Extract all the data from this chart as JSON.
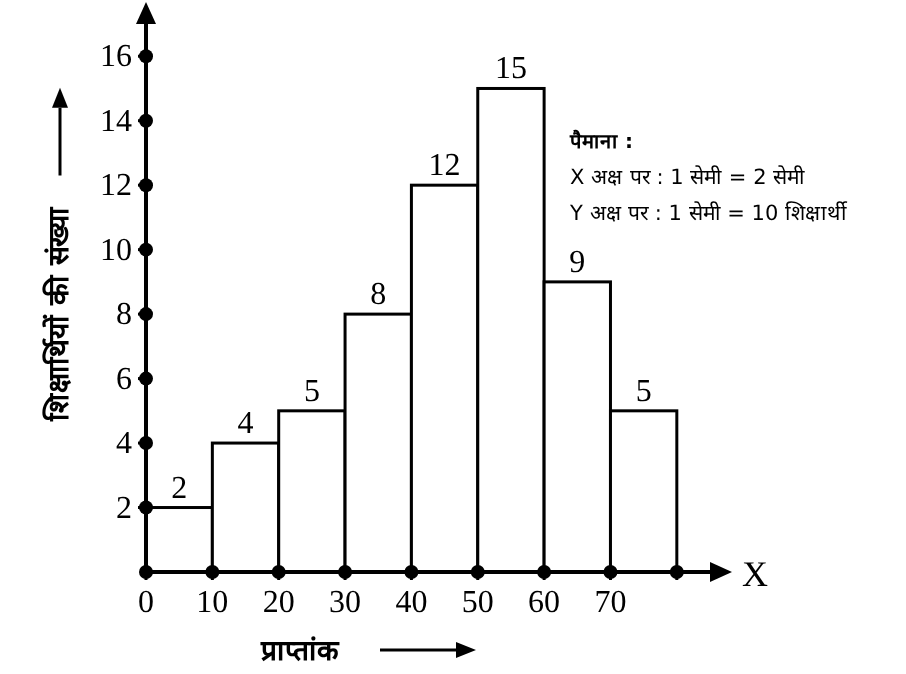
{
  "chart_data": {
    "type": "histogram",
    "xlabel": "प्राप्तांक",
    "ylabel": "शिक्षार्थियों की संख्या",
    "bins": [
      0,
      10,
      20,
      30,
      40,
      50,
      60,
      70,
      80
    ],
    "values": [
      2,
      4,
      5,
      8,
      12,
      15,
      9,
      5
    ],
    "color": "#ffffff",
    "data_labels": true,
    "xlim": [
      0,
      85
    ],
    "xticks": [
      0,
      10,
      20,
      30,
      40,
      50,
      60,
      70,
      {
        "value": 80,
        "label": null
      }
    ],
    "ylim": [
      0,
      17
    ],
    "yticks": [
      2,
      4,
      6,
      8,
      10,
      12,
      14,
      16
    ],
    "annotations": [
      "X",
      "पैमाना :",
      "X अक्ष पर : 1 सेमी = 2 सेमी",
      "Y अक्ष पर : 1 सेमी = 10 शिक्षार्थी"
    ]
  }
}
